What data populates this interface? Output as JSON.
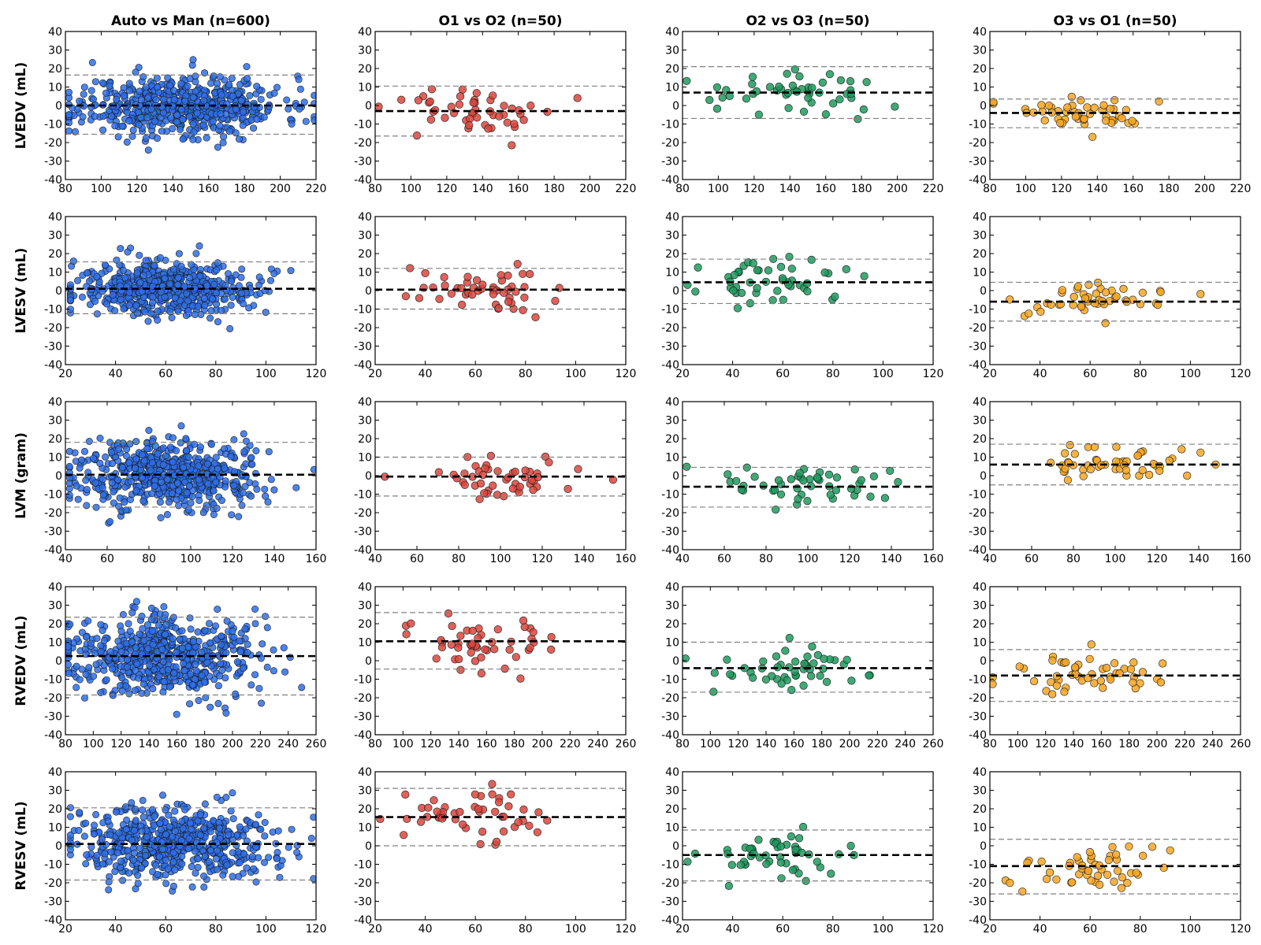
{
  "chart_data": {
    "type": "scatter",
    "subtype": "bland-altman grid",
    "columns": [
      "Auto vs Man (n=600)",
      "O1 vs O2 (n=50)",
      "O2 vs O3 (n=50)",
      "O3 vs O1 (n=50)"
    ],
    "rows": [
      "LVEDV (mL)",
      "LVESV (mL)",
      "LVM (gram)",
      "RVEDV (mL)",
      "RVESV (mL)"
    ],
    "column_colors": [
      "#2e6fe8",
      "#d9463d",
      "#1f9a5e",
      "#f5a623"
    ],
    "y_range": [
      -40,
      40
    ],
    "y_ticks": [
      "40",
      "30",
      "20",
      "10",
      "0",
      "-10",
      "-20",
      "-30",
      "-40"
    ],
    "x_axes": [
      {
        "min": 80,
        "max": 220,
        "ticks": [
          "80",
          "100",
          "120",
          "140",
          "160",
          "180",
          "200",
          "220"
        ]
      },
      {
        "min": 20,
        "max": 120,
        "ticks": [
          "20",
          "40",
          "60",
          "80",
          "100",
          "120"
        ]
      },
      {
        "min": 40,
        "max": 160,
        "ticks": [
          "40",
          "60",
          "80",
          "100",
          "120",
          "140",
          "160"
        ]
      },
      {
        "min": 80,
        "max": 260,
        "ticks": [
          "80",
          "100",
          "120",
          "140",
          "160",
          "180",
          "200",
          "220",
          "240",
          "260"
        ]
      },
      {
        "min": 20,
        "max": 120,
        "ticks": [
          "20",
          "40",
          "60",
          "80",
          "100",
          "120"
        ]
      }
    ],
    "panels": [
      [
        {
          "mean": 0,
          "upper": 16.5,
          "lower": -15.5,
          "n": 600,
          "x_mean": 145,
          "x_sd": 28,
          "y_sd": 8,
          "seed": 11
        },
        {
          "mean": -3,
          "upper": 10.5,
          "lower": -16.5,
          "n": 50,
          "x_mean": 140,
          "x_sd": 25,
          "y_sd": 6,
          "seed": 12
        },
        {
          "mean": 7,
          "upper": 21,
          "lower": -7,
          "n": 50,
          "x_mean": 140,
          "x_sd": 25,
          "y_sd": 6,
          "seed": 13
        },
        {
          "mean": -4,
          "upper": 3.5,
          "lower": -12,
          "n": 50,
          "x_mean": 140,
          "x_sd": 25,
          "y_sd": 4,
          "seed": 14
        }
      ],
      [
        {
          "mean": 1,
          "upper": 15.5,
          "lower": -12.5,
          "n": 600,
          "x_mean": 60,
          "x_sd": 18,
          "y_sd": 7,
          "seed": 21
        },
        {
          "mean": 0.5,
          "upper": 12,
          "lower": -10,
          "n": 50,
          "x_mean": 60,
          "x_sd": 15,
          "y_sd": 5.5,
          "seed": 22
        },
        {
          "mean": 4.5,
          "upper": 17,
          "lower": -7,
          "n": 50,
          "x_mean": 58,
          "x_sd": 15,
          "y_sd": 5.5,
          "seed": 23
        },
        {
          "mean": -6,
          "upper": 4.5,
          "lower": -16.5,
          "n": 50,
          "x_mean": 58,
          "x_sd": 15,
          "y_sd": 5,
          "seed": 24
        }
      ],
      [
        {
          "mean": 0.5,
          "upper": 18,
          "lower": -17,
          "n": 600,
          "x_mean": 90,
          "x_sd": 22,
          "y_sd": 9,
          "seed": 31
        },
        {
          "mean": -0.5,
          "upper": 10,
          "lower": -11,
          "n": 50,
          "x_mean": 100,
          "x_sd": 20,
          "y_sd": 5.5,
          "seed": 32
        },
        {
          "mean": -6,
          "upper": 4.5,
          "lower": -17,
          "n": 50,
          "x_mean": 100,
          "x_sd": 20,
          "y_sd": 5.5,
          "seed": 33
        },
        {
          "mean": 6,
          "upper": 17,
          "lower": -5,
          "n": 50,
          "x_mean": 100,
          "x_sd": 20,
          "y_sd": 5.5,
          "seed": 34
        }
      ],
      [
        {
          "mean": 2.5,
          "upper": 23.5,
          "lower": -18.5,
          "n": 600,
          "x_mean": 150,
          "x_sd": 35,
          "y_sd": 11,
          "seed": 41
        },
        {
          "mean": 10.5,
          "upper": 26,
          "lower": -4.5,
          "n": 50,
          "x_mean": 150,
          "x_sd": 30,
          "y_sd": 7.5,
          "seed": 42
        },
        {
          "mean": -4,
          "upper": 10,
          "lower": -17,
          "n": 50,
          "x_mean": 150,
          "x_sd": 30,
          "y_sd": 7,
          "seed": 43
        },
        {
          "mean": -8,
          "upper": 6,
          "lower": -22,
          "n": 50,
          "x_mean": 150,
          "x_sd": 30,
          "y_sd": 7,
          "seed": 44
        }
      ],
      [
        {
          "mean": 1,
          "upper": 20.5,
          "lower": -18.5,
          "n": 600,
          "x_mean": 65,
          "x_sd": 20,
          "y_sd": 10,
          "seed": 51
        },
        {
          "mean": 15.5,
          "upper": 31,
          "lower": 0,
          "n": 50,
          "x_mean": 60,
          "x_sd": 15,
          "y_sd": 7.5,
          "seed": 52
        },
        {
          "mean": -5,
          "upper": 8.5,
          "lower": -19,
          "n": 50,
          "x_mean": 58,
          "x_sd": 15,
          "y_sd": 7,
          "seed": 53
        },
        {
          "mean": -11,
          "upper": 3.5,
          "lower": -26,
          "n": 50,
          "x_mean": 60,
          "x_sd": 15,
          "y_sd": 7.5,
          "seed": 54
        }
      ]
    ]
  }
}
